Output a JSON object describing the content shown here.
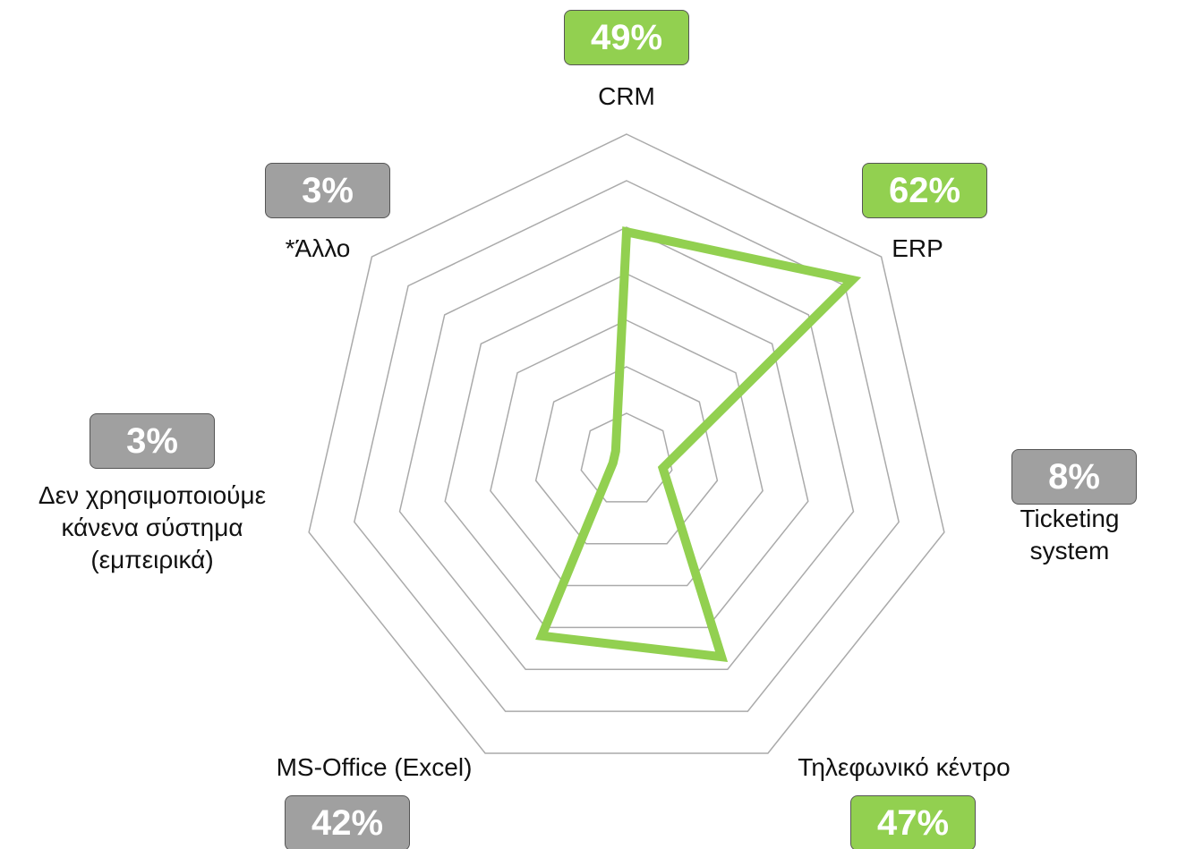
{
  "chart_data": {
    "type": "radar",
    "categories": [
      "CRM",
      "ERP",
      "Ticketing system",
      "Τηλεφωνικό κέντρο",
      "MS-Office (Excel)",
      "Δεν χρησιμοποιούμε\nκάνενα σύστημα\n(εμπειρικά)",
      "*Άλλο"
    ],
    "values": [
      49,
      62,
      8,
      47,
      42,
      3,
      3
    ],
    "value_labels": [
      "49%",
      "62%",
      "8%",
      "47%",
      "42%",
      "3%",
      "3%"
    ],
    "label_colors": [
      "#92d050",
      "#92d050",
      "#a0a0a0",
      "#92d050",
      "#a0a0a0",
      "#a0a0a0",
      "#a0a0a0"
    ],
    "color": "#92d050",
    "ylim": [
      0,
      70
    ],
    "yticks": [
      10,
      20,
      30,
      40,
      50,
      60,
      70
    ],
    "grid": true
  }
}
